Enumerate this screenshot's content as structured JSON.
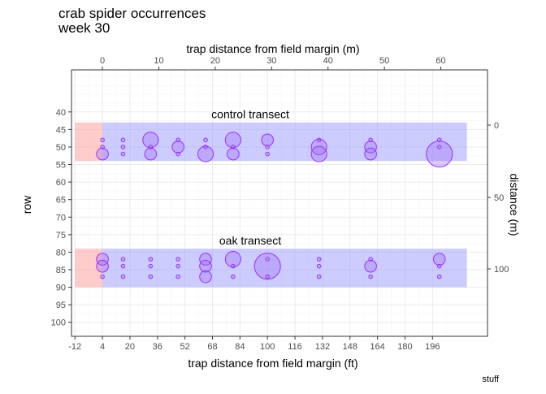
{
  "chart_data": {
    "type": "scatter",
    "title": "crab spider occurrences",
    "subtitle": "week 30",
    "caption": "stuff",
    "xlabel_bottom": "trap distance from field margin (ft)",
    "xlabel_top": "trap distance from field margin (m)",
    "ylabel_left": "row",
    "ylabel_right": "distance (m)",
    "x_range_ft": [
      -14,
      228
    ],
    "y_range_row": [
      28,
      104
    ],
    "y_reversed": true,
    "grid": true,
    "x_ticks_ft": [
      "-12",
      "4",
      "20",
      "36",
      "52",
      "68",
      "84",
      "100",
      "116",
      "132",
      "148",
      "164",
      "180",
      "196"
    ],
    "x_ticks_m": [
      "0",
      "10",
      "20",
      "30",
      "40",
      "50",
      "60"
    ],
    "y_ticks_row": [
      "40",
      "45",
      "50",
      "55",
      "60",
      "65",
      "70",
      "75",
      "80",
      "85",
      "90",
      "95",
      "100"
    ],
    "y_ticks_m_right": [
      "0",
      "50",
      "100"
    ],
    "colors": {
      "margin_zone": "#ff9999",
      "transect_zone": "#9999ff",
      "point_fill": "#a066ee",
      "point_stroke": "#9b30ff",
      "panel_border": "#333333",
      "grid_major": "#ebebeb",
      "grid_minor": "#f5f5f5"
    },
    "regions": [
      {
        "name": "control transect",
        "margin_x": [
          -12,
          4
        ],
        "transect_x": [
          4,
          216
        ],
        "rows": [
          43,
          54
        ]
      },
      {
        "name": "oak transect",
        "margin_x": [
          -12,
          4
        ],
        "transect_x": [
          4,
          216
        ],
        "rows": [
          79,
          90
        ]
      }
    ],
    "series": [
      {
        "name": "control transect",
        "points": [
          {
            "x": 4,
            "row": 48,
            "count": 1
          },
          {
            "x": 4,
            "row": 50,
            "count": 1
          },
          {
            "x": 4,
            "row": 52,
            "count": 4
          },
          {
            "x": 16,
            "row": 48,
            "count": 1
          },
          {
            "x": 16,
            "row": 50,
            "count": 1
          },
          {
            "x": 16,
            "row": 52,
            "count": 1
          },
          {
            "x": 32,
            "row": 48,
            "count": 6
          },
          {
            "x": 32,
            "row": 50,
            "count": 1
          },
          {
            "x": 32,
            "row": 52,
            "count": 4
          },
          {
            "x": 48,
            "row": 48,
            "count": 1
          },
          {
            "x": 48,
            "row": 50,
            "count": 4
          },
          {
            "x": 48,
            "row": 52,
            "count": 1
          },
          {
            "x": 64,
            "row": 48,
            "count": 1
          },
          {
            "x": 64,
            "row": 50,
            "count": 1
          },
          {
            "x": 64,
            "row": 52,
            "count": 6
          },
          {
            "x": 80,
            "row": 48,
            "count": 6
          },
          {
            "x": 80,
            "row": 50,
            "count": 1
          },
          {
            "x": 80,
            "row": 52,
            "count": 4
          },
          {
            "x": 100,
            "row": 48,
            "count": 4
          },
          {
            "x": 100,
            "row": 50,
            "count": 1
          },
          {
            "x": 100,
            "row": 52,
            "count": 1
          },
          {
            "x": 130,
            "row": 48,
            "count": 1
          },
          {
            "x": 130,
            "row": 50,
            "count": 6
          },
          {
            "x": 130,
            "row": 52,
            "count": 6
          },
          {
            "x": 160,
            "row": 48,
            "count": 1
          },
          {
            "x": 160,
            "row": 50,
            "count": 4
          },
          {
            "x": 160,
            "row": 52,
            "count": 4
          },
          {
            "x": 200,
            "row": 48,
            "count": 1
          },
          {
            "x": 200,
            "row": 50,
            "count": 1
          },
          {
            "x": 200,
            "row": 52,
            "count": 14
          }
        ]
      },
      {
        "name": "oak transect",
        "points": [
          {
            "x": 4,
            "row": 82,
            "count": 4
          },
          {
            "x": 4,
            "row": 84,
            "count": 4
          },
          {
            "x": 4,
            "row": 87,
            "count": 1
          },
          {
            "x": 16,
            "row": 82,
            "count": 1
          },
          {
            "x": 16,
            "row": 84,
            "count": 1
          },
          {
            "x": 16,
            "row": 87,
            "count": 1
          },
          {
            "x": 32,
            "row": 82,
            "count": 1
          },
          {
            "x": 32,
            "row": 84,
            "count": 1
          },
          {
            "x": 32,
            "row": 87,
            "count": 1
          },
          {
            "x": 48,
            "row": 82,
            "count": 1
          },
          {
            "x": 48,
            "row": 84,
            "count": 1
          },
          {
            "x": 48,
            "row": 87,
            "count": 1
          },
          {
            "x": 64,
            "row": 82,
            "count": 4
          },
          {
            "x": 64,
            "row": 84,
            "count": 4
          },
          {
            "x": 64,
            "row": 87,
            "count": 4
          },
          {
            "x": 80,
            "row": 82,
            "count": 6
          },
          {
            "x": 80,
            "row": 84,
            "count": 1
          },
          {
            "x": 80,
            "row": 87,
            "count": 1
          },
          {
            "x": 100,
            "row": 82,
            "count": 1
          },
          {
            "x": 100,
            "row": 84,
            "count": 14
          },
          {
            "x": 100,
            "row": 87,
            "count": 1
          },
          {
            "x": 130,
            "row": 82,
            "count": 1
          },
          {
            "x": 130,
            "row": 84,
            "count": 1
          },
          {
            "x": 130,
            "row": 87,
            "count": 1
          },
          {
            "x": 160,
            "row": 82,
            "count": 1
          },
          {
            "x": 160,
            "row": 84,
            "count": 4
          },
          {
            "x": 160,
            "row": 87,
            "count": 1
          },
          {
            "x": 200,
            "row": 82,
            "count": 4
          },
          {
            "x": 200,
            "row": 84,
            "count": 1
          },
          {
            "x": 200,
            "row": 87,
            "count": 1
          }
        ]
      }
    ]
  }
}
